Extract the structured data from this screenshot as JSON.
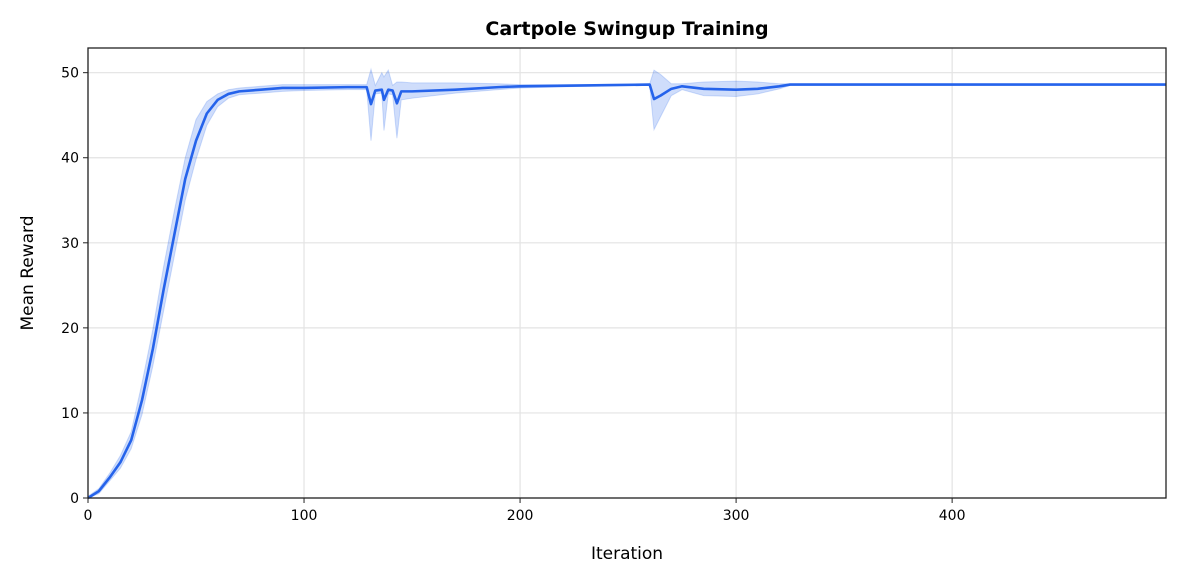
{
  "chart_data": {
    "type": "line",
    "title": "Cartpole Swingup Training",
    "xlabel": "Iteration",
    "ylabel": "Mean Reward",
    "xlim": [
      0,
      499
    ],
    "ylim": [
      0,
      52.9
    ],
    "xticks": [
      0,
      100,
      200,
      300,
      400
    ],
    "yticks": [
      0,
      10,
      20,
      30,
      40,
      50
    ],
    "grid": true,
    "colors": {
      "line": "#2563eb",
      "band": "#2563eb"
    },
    "series": [
      {
        "name": "Mean Reward",
        "x": [
          0,
          5,
          10,
          15,
          20,
          25,
          30,
          35,
          40,
          45,
          50,
          55,
          60,
          65,
          70,
          80,
          90,
          100,
          120,
          129,
          131,
          133,
          136,
          137,
          139,
          141,
          143,
          145,
          150,
          170,
          190,
          200,
          230,
          260,
          262,
          265,
          270,
          275,
          285,
          300,
          310,
          320,
          325,
          380,
          420,
          460,
          470,
          499
        ],
        "mean": [
          0,
          0.8,
          2.4,
          4.2,
          6.8,
          11.5,
          17.5,
          24.5,
          31,
          37.5,
          42,
          45.2,
          46.8,
          47.5,
          47.8,
          48.0,
          48.2,
          48.2,
          48.3,
          48.3,
          46.3,
          47.9,
          48.0,
          46.8,
          48.0,
          47.9,
          46.4,
          47.8,
          47.8,
          48.0,
          48.3,
          48.4,
          48.5,
          48.6,
          46.9,
          47.3,
          48.1,
          48.4,
          48.1,
          48.0,
          48.1,
          48.4,
          48.6,
          48.6,
          48.6,
          48.6,
          48.6,
          48.6
        ],
        "lower": [
          0,
          0.5,
          2.0,
          3.5,
          5.8,
          9.8,
          15.5,
          22.0,
          28.5,
          35.0,
          39.8,
          43.8,
          46.0,
          47.0,
          47.4,
          47.6,
          47.8,
          47.9,
          48.0,
          48.0,
          42.0,
          47.5,
          47.6,
          43.2,
          47.5,
          47.4,
          42.3,
          46.8,
          47.0,
          47.6,
          48.0,
          48.2,
          48.4,
          48.5,
          43.3,
          44.8,
          47.3,
          48.0,
          47.3,
          47.2,
          47.5,
          48.1,
          48.5,
          48.5,
          48.5,
          48.5,
          48.5,
          48.5
        ],
        "upper": [
          0.2,
          1.1,
          2.9,
          5.0,
          7.8,
          13.5,
          19.8,
          27.2,
          33.8,
          40.0,
          44.5,
          46.6,
          47.5,
          48.0,
          48.2,
          48.4,
          48.6,
          48.6,
          48.6,
          48.6,
          50.4,
          48.5,
          50.0,
          49.5,
          50.3,
          48.5,
          48.9,
          48.9,
          48.8,
          48.8,
          48.7,
          48.6,
          48.6,
          48.7,
          50.3,
          49.8,
          48.7,
          48.7,
          48.9,
          49.0,
          48.9,
          48.7,
          48.7,
          48.7,
          48.7,
          48.7,
          48.7,
          48.7
        ]
      }
    ]
  }
}
